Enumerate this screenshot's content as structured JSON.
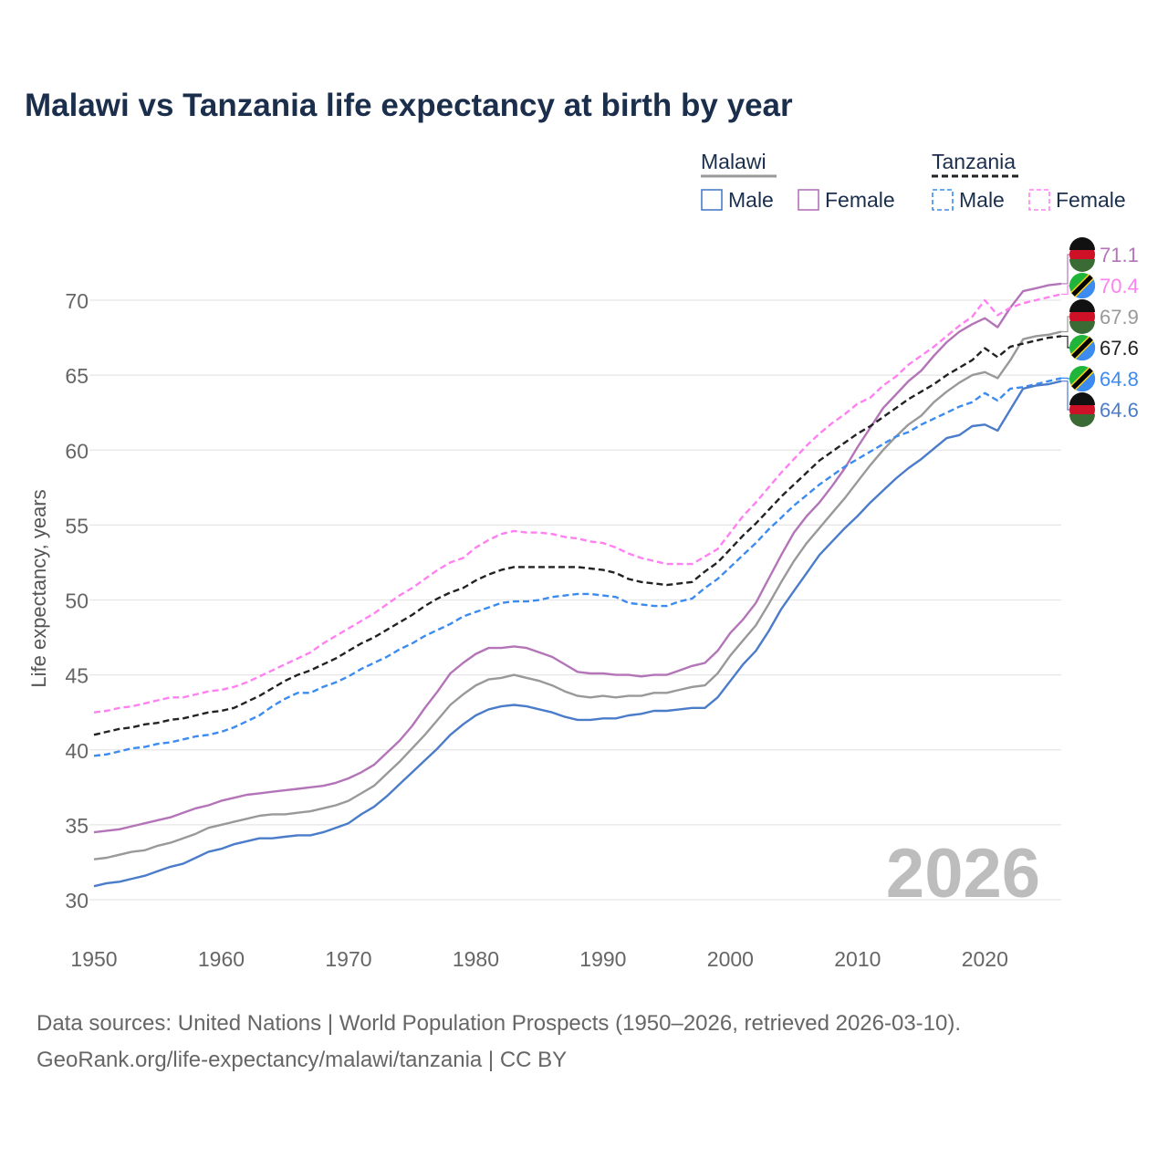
{
  "title": "Malawi vs Tanzania life expectancy at birth by year",
  "source_line1": "Data sources: United Nations | World Population Prospects (1950–2026, retrieved 2026-03-10).",
  "source_line2": "GeoRank.org/life-expectancy/malawi/tanzania | CC BY",
  "year_watermark": "2026",
  "legend": {
    "groups": [
      {
        "name": "Malawi",
        "items": [
          "Male",
          "Female"
        ]
      },
      {
        "name": "Tanzania",
        "items": [
          "Male",
          "Female"
        ]
      }
    ]
  },
  "chart_data": {
    "type": "line",
    "title": "Malawi vs Tanzania life expectancy at birth by year",
    "xlabel": "",
    "ylabel": "Life expectancy, years",
    "xlim": [
      1950,
      2026
    ],
    "ylim": [
      29,
      73
    ],
    "x_ticks": [
      1950,
      1960,
      1970,
      1980,
      1990,
      2000,
      2010,
      2020
    ],
    "y_ticks": [
      30,
      35,
      40,
      45,
      50,
      55,
      60,
      65,
      70
    ],
    "grid": true,
    "legend_position": "top-right",
    "x_start": 1950,
    "series": [
      {
        "name": "Malawi Female",
        "country": "Malawi",
        "color": "#b374b8",
        "dashed": false,
        "end_label": "71.1",
        "values": [
          34.5,
          34.6,
          34.7,
          34.9,
          35.1,
          35.3,
          35.5,
          35.8,
          36.1,
          36.3,
          36.6,
          36.8,
          37.0,
          37.1,
          37.2,
          37.3,
          37.4,
          37.5,
          37.6,
          37.8,
          38.1,
          38.5,
          39.0,
          39.8,
          40.6,
          41.6,
          42.8,
          43.9,
          45.1,
          45.8,
          46.4,
          46.8,
          46.8,
          46.9,
          46.8,
          46.5,
          46.2,
          45.7,
          45.2,
          45.1,
          45.1,
          45.0,
          45.0,
          44.9,
          45.0,
          45.0,
          45.3,
          45.6,
          45.8,
          46.6,
          47.8,
          48.7,
          49.8,
          51.4,
          53.0,
          54.5,
          55.6,
          56.5,
          57.6,
          58.8,
          60.2,
          61.5,
          62.8,
          63.7,
          64.6,
          65.3,
          66.3,
          67.2,
          67.9,
          68.4,
          68.8,
          68.2,
          69.5,
          70.6,
          70.8,
          71.0,
          71.1
        ]
      },
      {
        "name": "Tanzania Female",
        "country": "Tanzania",
        "color": "#ff80f0",
        "dashed": true,
        "end_label": "70.4",
        "values": [
          42.5,
          42.6,
          42.8,
          42.9,
          43.1,
          43.3,
          43.5,
          43.5,
          43.7,
          43.9,
          44.0,
          44.2,
          44.5,
          44.9,
          45.3,
          45.7,
          46.1,
          46.5,
          47.1,
          47.6,
          48.1,
          48.6,
          49.1,
          49.7,
          50.3,
          50.8,
          51.4,
          52.0,
          52.5,
          52.8,
          53.5,
          54.0,
          54.4,
          54.6,
          54.5,
          54.5,
          54.4,
          54.2,
          54.1,
          53.9,
          53.8,
          53.5,
          53.1,
          52.8,
          52.6,
          52.4,
          52.4,
          52.4,
          52.9,
          53.4,
          54.5,
          55.6,
          56.5,
          57.5,
          58.5,
          59.4,
          60.3,
          61.1,
          61.8,
          62.4,
          63.1,
          63.5,
          64.3,
          64.9,
          65.7,
          66.3,
          66.9,
          67.6,
          68.3,
          68.9,
          70.0,
          69.0,
          69.5,
          69.8,
          70.0,
          70.2,
          70.4
        ]
      },
      {
        "name": "Malawi Total",
        "country": "Malawi",
        "color": "#999999",
        "dashed": false,
        "end_label": "67.9",
        "values": [
          32.7,
          32.8,
          33.0,
          33.2,
          33.3,
          33.6,
          33.8,
          34.1,
          34.4,
          34.8,
          35.0,
          35.2,
          35.4,
          35.6,
          35.7,
          35.7,
          35.8,
          35.9,
          36.1,
          36.3,
          36.6,
          37.1,
          37.6,
          38.4,
          39.2,
          40.1,
          41.0,
          42.0,
          43.0,
          43.7,
          44.3,
          44.7,
          44.8,
          45.0,
          44.8,
          44.6,
          44.3,
          43.9,
          43.6,
          43.5,
          43.6,
          43.5,
          43.6,
          43.6,
          43.8,
          43.8,
          44.0,
          44.2,
          44.3,
          45.1,
          46.3,
          47.3,
          48.3,
          49.7,
          51.2,
          52.6,
          53.8,
          54.8,
          55.8,
          56.8,
          57.9,
          59.0,
          60.0,
          60.9,
          61.7,
          62.3,
          63.2,
          63.9,
          64.5,
          65.0,
          65.2,
          64.8,
          66.0,
          67.4,
          67.6,
          67.7,
          67.9
        ]
      },
      {
        "name": "Tanzania Total",
        "country": "Tanzania",
        "color": "#222222",
        "dashed": true,
        "end_label": "67.6",
        "values": [
          41.0,
          41.2,
          41.4,
          41.5,
          41.7,
          41.8,
          42.0,
          42.1,
          42.3,
          42.5,
          42.6,
          42.8,
          43.2,
          43.6,
          44.1,
          44.6,
          45.0,
          45.3,
          45.7,
          46.1,
          46.6,
          47.1,
          47.5,
          48.0,
          48.5,
          49.0,
          49.6,
          50.1,
          50.5,
          50.8,
          51.3,
          51.7,
          52.0,
          52.2,
          52.2,
          52.2,
          52.2,
          52.2,
          52.2,
          52.1,
          52.0,
          51.8,
          51.4,
          51.2,
          51.1,
          51.0,
          51.1,
          51.2,
          51.9,
          52.5,
          53.4,
          54.3,
          55.1,
          56.0,
          56.9,
          57.7,
          58.5,
          59.3,
          59.9,
          60.5,
          61.1,
          61.6,
          62.2,
          62.8,
          63.4,
          63.9,
          64.4,
          65.0,
          65.5,
          66.0,
          66.8,
          66.2,
          66.9,
          67.1,
          67.3,
          67.5,
          67.6
        ]
      },
      {
        "name": "Tanzania Male",
        "country": "Tanzania",
        "color": "#3b8bf0",
        "dashed": true,
        "end_label": "64.8",
        "values": [
          39.6,
          39.7,
          39.9,
          40.1,
          40.2,
          40.4,
          40.5,
          40.7,
          40.9,
          41.0,
          41.2,
          41.5,
          41.9,
          42.3,
          42.9,
          43.4,
          43.8,
          43.8,
          44.2,
          44.5,
          44.9,
          45.4,
          45.8,
          46.2,
          46.7,
          47.1,
          47.6,
          48.0,
          48.4,
          48.9,
          49.2,
          49.5,
          49.8,
          49.9,
          49.9,
          50.0,
          50.2,
          50.3,
          50.4,
          50.4,
          50.3,
          50.2,
          49.8,
          49.7,
          49.6,
          49.6,
          49.9,
          50.1,
          50.8,
          51.4,
          52.2,
          53.0,
          53.8,
          54.7,
          55.5,
          56.3,
          57.0,
          57.7,
          58.3,
          58.9,
          59.4,
          59.9,
          60.4,
          60.9,
          61.2,
          61.7,
          62.1,
          62.5,
          62.9,
          63.2,
          63.8,
          63.3,
          64.1,
          64.2,
          64.4,
          64.6,
          64.8
        ]
      },
      {
        "name": "Malawi Male",
        "country": "Malawi",
        "color": "#4a7cc9",
        "dashed": false,
        "end_label": "64.6",
        "values": [
          30.9,
          31.1,
          31.2,
          31.4,
          31.6,
          31.9,
          32.2,
          32.4,
          32.8,
          33.2,
          33.4,
          33.7,
          33.9,
          34.1,
          34.1,
          34.2,
          34.3,
          34.3,
          34.5,
          34.8,
          35.1,
          35.7,
          36.2,
          36.9,
          37.7,
          38.5,
          39.3,
          40.1,
          41.0,
          41.7,
          42.3,
          42.7,
          42.9,
          43.0,
          42.9,
          42.7,
          42.5,
          42.2,
          42.0,
          42.0,
          42.1,
          42.1,
          42.3,
          42.4,
          42.6,
          42.6,
          42.7,
          42.8,
          42.8,
          43.5,
          44.6,
          45.7,
          46.6,
          47.9,
          49.4,
          50.6,
          51.8,
          53.0,
          53.9,
          54.8,
          55.6,
          56.5,
          57.3,
          58.1,
          58.8,
          59.4,
          60.1,
          60.8,
          61.0,
          61.6,
          61.7,
          61.3,
          62.7,
          64.1,
          64.3,
          64.4,
          64.6
        ]
      }
    ]
  }
}
